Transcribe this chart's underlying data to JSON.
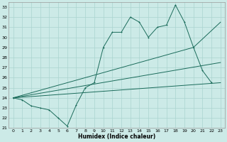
{
  "xlabel": "Humidex (Indice chaleur)",
  "background_color": "#cceae7",
  "grid_color": "#aad4d0",
  "line_color": "#1a6b5a",
  "xlim": [
    -0.5,
    23.5
  ],
  "ylim": [
    21,
    33.5
  ],
  "xticks": [
    0,
    1,
    2,
    3,
    4,
    5,
    6,
    7,
    8,
    9,
    10,
    11,
    12,
    13,
    14,
    15,
    16,
    17,
    18,
    19,
    20,
    21,
    22,
    23
  ],
  "yticks": [
    21,
    22,
    23,
    24,
    25,
    26,
    27,
    28,
    29,
    30,
    31,
    32,
    33
  ],
  "series1_x": [
    0,
    1,
    2,
    3,
    4,
    5,
    6,
    7,
    8,
    9,
    10,
    11,
    12,
    13,
    14,
    15,
    16,
    17,
    18,
    19,
    20,
    21,
    22
  ],
  "series1_y": [
    24.0,
    23.8,
    23.2,
    23.0,
    22.8,
    22.0,
    21.2,
    23.3,
    25.0,
    25.5,
    29.0,
    30.5,
    30.5,
    32.0,
    31.5,
    30.0,
    31.0,
    31.2,
    33.2,
    31.5,
    29.0,
    26.7,
    25.5
  ],
  "line1_x": [
    0,
    23
  ],
  "line1_y": [
    24.0,
    25.5
  ],
  "line2_x": [
    0,
    23
  ],
  "line2_y": [
    24.0,
    27.5
  ],
  "line3_x": [
    0,
    20,
    23
  ],
  "line3_y": [
    24.0,
    29.0,
    31.5
  ]
}
